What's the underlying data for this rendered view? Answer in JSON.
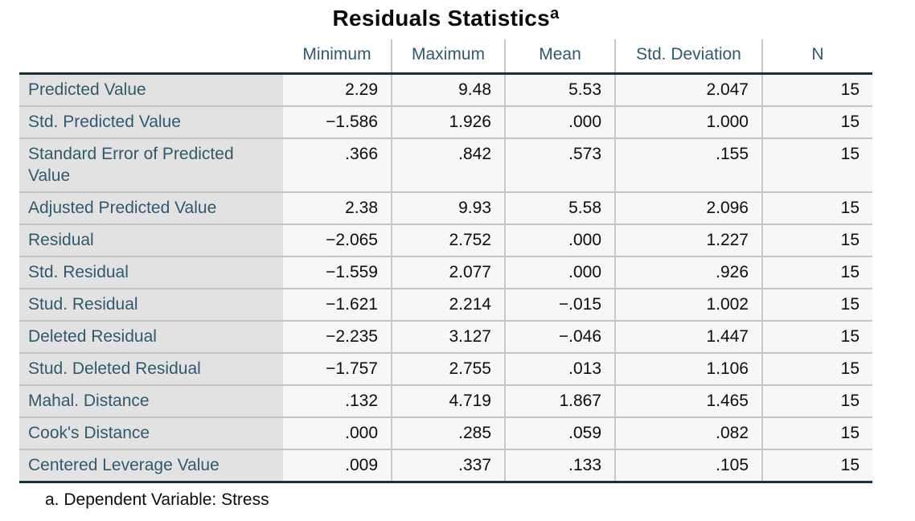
{
  "chart_data": {
    "type": "table",
    "title": "Residuals Statistics",
    "title_superscript": "a",
    "columns": [
      "",
      "Minimum",
      "Maximum",
      "Mean",
      "Std. Deviation",
      "N"
    ],
    "rows": [
      {
        "label": "Predicted Value",
        "values": [
          "2.29",
          "9.48",
          "5.53",
          "2.047",
          "15"
        ]
      },
      {
        "label": "Std. Predicted Value",
        "values": [
          "−1.586",
          "1.926",
          ".000",
          "1.000",
          "15"
        ]
      },
      {
        "label": "Standard Error of Predicted Value",
        "values": [
          ".366",
          ".842",
          ".573",
          ".155",
          "15"
        ]
      },
      {
        "label": "Adjusted Predicted Value",
        "values": [
          "2.38",
          "9.93",
          "5.58",
          "2.096",
          "15"
        ]
      },
      {
        "label": "Residual",
        "values": [
          "−2.065",
          "2.752",
          ".000",
          "1.227",
          "15"
        ]
      },
      {
        "label": "Std. Residual",
        "values": [
          "−1.559",
          "2.077",
          ".000",
          ".926",
          "15"
        ]
      },
      {
        "label": "Stud. Residual",
        "values": [
          "−1.621",
          "2.214",
          "−.015",
          "1.002",
          "15"
        ]
      },
      {
        "label": "Deleted Residual",
        "values": [
          "−2.235",
          "3.127",
          "−.046",
          "1.447",
          "15"
        ]
      },
      {
        "label": "Stud. Deleted Residual",
        "values": [
          "−1.757",
          "2.755",
          ".013",
          "1.106",
          "15"
        ]
      },
      {
        "label": "Mahal. Distance",
        "values": [
          ".132",
          "4.719",
          "1.867",
          "1.465",
          "15"
        ]
      },
      {
        "label": "Cook's Distance",
        "values": [
          ".000",
          ".285",
          ".059",
          ".082",
          "15"
        ]
      },
      {
        "label": "Centered Leverage Value",
        "values": [
          ".009",
          ".337",
          ".133",
          ".105",
          "15"
        ]
      }
    ],
    "footnote": "a. Dependent Variable: Stress"
  },
  "colors": {
    "header_text": "#2e5a70",
    "label_text": "#2e5a70",
    "label_bg": "#e2e2e2",
    "cell_bg": "#f7f7f9",
    "row_line": "#c3c3c3",
    "col_line": "#c9c9c9",
    "heavy_line": "#16323e",
    "value_text": "#0d0d0d"
  }
}
